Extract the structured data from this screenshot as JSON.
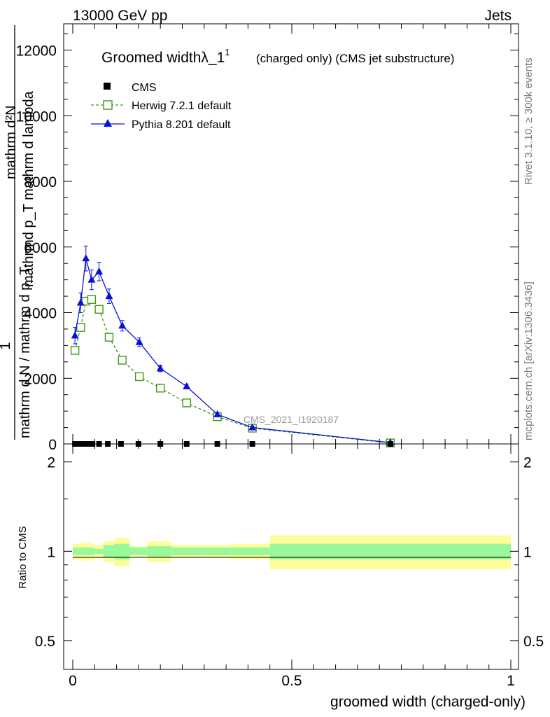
{
  "header": {
    "energy": "13000 GeV pp",
    "category": "Jets",
    "side_rivet": "Rivet 3.1.10, ≥ 300k events",
    "side_mcplots": "mcplots.cern.ch [arXiv:1306.3436]",
    "watermark": "CMS_2021_I1920187"
  },
  "chart_data": [
    {
      "type": "line",
      "title_main": "Groomed widthλ_1",
      "title_sup": "1",
      "title_sub": "(charged only) (CMS jet substructure)",
      "ylabel_numer_1": "mathrm d²N",
      "ylabel_numer_2": "mathrmd p_T mathrm d lambda",
      "ylabel_one": "1",
      "ylabel_denom": "mathrm d N / mathrm d p_T",
      "xlim": [
        0,
        1
      ],
      "ylim": [
        0,
        12800
      ],
      "ytick_labels": [
        "0",
        "2000",
        "4000",
        "6000",
        "8000",
        "10000",
        "12000"
      ],
      "ytick_values": [
        0,
        2000,
        4000,
        6000,
        8000,
        10000,
        12000
      ],
      "legend": [
        "CMS",
        "Herwig 7.2.1 default",
        "Pythia 8.201 default"
      ],
      "legend_position": "top-left",
      "colors": {
        "cms": "#000000",
        "herwig": "#3a9a14",
        "pythia": "#0a10d8"
      },
      "series": [
        {
          "name": "CMS",
          "x": [
            0.005,
            0.015,
            0.025,
            0.035,
            0.045,
            0.06,
            0.08,
            0.11,
            0.15,
            0.2,
            0.26,
            0.33,
            0.41,
            0.725
          ],
          "y": [
            0,
            0,
            0,
            0,
            0,
            0,
            0,
            0,
            0,
            0,
            0,
            0,
            0,
            0
          ]
        },
        {
          "name": "Herwig 7.2.1 default",
          "x": [
            0.005,
            0.018,
            0.03,
            0.043,
            0.06,
            0.083,
            0.113,
            0.152,
            0.2,
            0.26,
            0.33,
            0.41,
            0.725
          ],
          "y": [
            2850,
            3550,
            4350,
            4400,
            4100,
            3250,
            2550,
            2050,
            1700,
            1250,
            830,
            480,
            30
          ],
          "err": [
            80,
            90,
            100,
            100,
            100,
            90,
            80,
            60,
            50,
            40,
            30,
            20,
            5
          ]
        },
        {
          "name": "Pythia 8.201 default",
          "x": [
            0.005,
            0.018,
            0.03,
            0.043,
            0.06,
            0.083,
            0.113,
            0.152,
            0.2,
            0.26,
            0.33,
            0.41,
            0.725
          ],
          "y": [
            3300,
            4300,
            5650,
            5000,
            5250,
            4500,
            3600,
            3100,
            2300,
            1750,
            900,
            500,
            40
          ],
          "err": [
            250,
            300,
            380,
            300,
            280,
            220,
            160,
            130,
            100,
            70,
            50,
            30,
            10
          ]
        }
      ]
    },
    {
      "type": "area",
      "ylabel": "Ratio to CMS",
      "xlabel": "groomed width (charged-only)",
      "xlim": [
        0,
        1
      ],
      "ylim": [
        0.4,
        2.3
      ],
      "log_y": true,
      "ytick_labels": [
        "0.5",
        "1",
        "2"
      ],
      "ytick_values": [
        0.5,
        1,
        2
      ],
      "xtick_labels": [
        "0",
        "0.5",
        "1"
      ],
      "xtick_values": [
        0,
        0.5,
        1
      ],
      "colors": {
        "stat": "#99f99a",
        "total": "#fdfd99",
        "ref_line": "#000000"
      },
      "bins": [
        {
          "lo": 0.0,
          "hi": 0.01,
          "stat": 0.03,
          "total": 0.06
        },
        {
          "lo": 0.01,
          "hi": 0.02,
          "stat": 0.03,
          "total": 0.06
        },
        {
          "lo": 0.02,
          "hi": 0.03,
          "stat": 0.03,
          "total": 0.07
        },
        {
          "lo": 0.03,
          "hi": 0.04,
          "stat": 0.03,
          "total": 0.07
        },
        {
          "lo": 0.04,
          "hi": 0.05,
          "stat": 0.03,
          "total": 0.06
        },
        {
          "lo": 0.05,
          "hi": 0.07,
          "stat": 0.02,
          "total": 0.05
        },
        {
          "lo": 0.07,
          "hi": 0.095,
          "stat": 0.05,
          "total": 0.08
        },
        {
          "lo": 0.095,
          "hi": 0.13,
          "stat": 0.06,
          "total": 0.11
        },
        {
          "lo": 0.13,
          "hi": 0.17,
          "stat": 0.03,
          "total": 0.04
        },
        {
          "lo": 0.17,
          "hi": 0.225,
          "stat": 0.04,
          "total": 0.08
        },
        {
          "lo": 0.225,
          "hi": 0.3,
          "stat": 0.03,
          "total": 0.05
        },
        {
          "lo": 0.3,
          "hi": 0.36,
          "stat": 0.03,
          "total": 0.05
        },
        {
          "lo": 0.36,
          "hi": 0.45,
          "stat": 0.03,
          "total": 0.06
        },
        {
          "lo": 0.45,
          "hi": 1.0,
          "stat": 0.06,
          "total": 0.13
        }
      ]
    }
  ]
}
